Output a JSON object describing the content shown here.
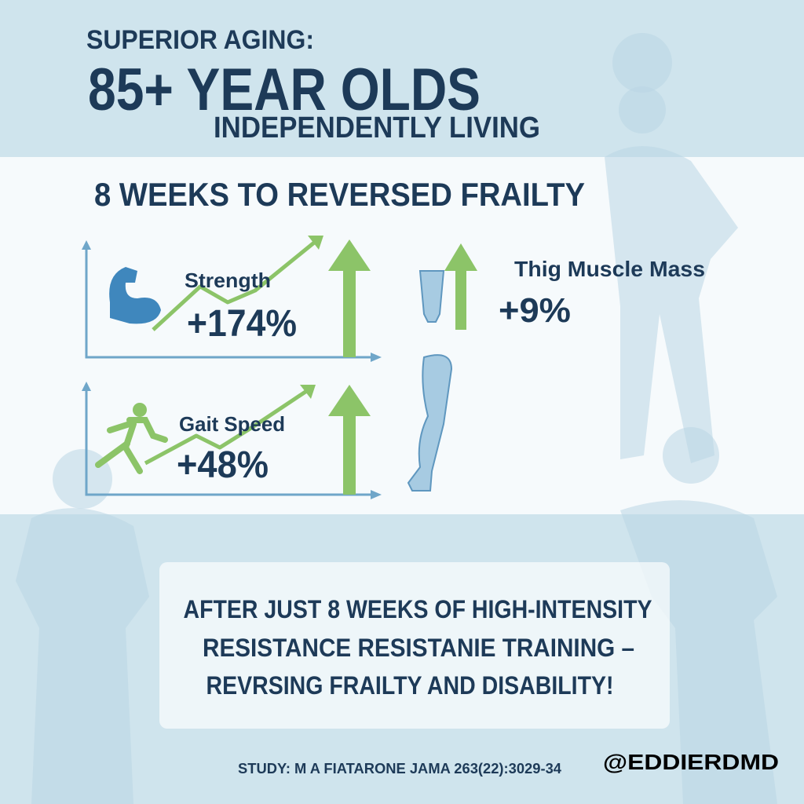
{
  "header": {
    "kicker": "SUPERIOR AGING:",
    "title": "85+ YEAR OLDS",
    "subtitle": "INDEPENDENTLY LIVING"
  },
  "section": {
    "heading": "8 WEEKS TO REVERSED FRAILTY",
    "metrics": [
      {
        "label": "Strength",
        "value": "+174%"
      },
      {
        "label": "Gait Speed",
        "value": "+48%"
      },
      {
        "label": "Thig Muscle Mass",
        "value": "+9%"
      }
    ]
  },
  "summary": {
    "lines": [
      "AFTER JUST 8 WEEKS OF HIGH-INTENSITY",
      "RESISTANCE RESISTANIE TRAINING –",
      "REVRSING FRAILTY AND DISABILITY!"
    ]
  },
  "footer": {
    "citation": "STUDY: M A FIATARONE JAMA 263(22):3029-34",
    "handle": "@EDDIERDMD"
  }
}
